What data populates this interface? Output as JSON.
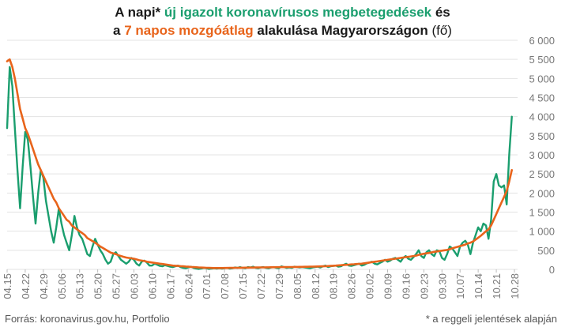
{
  "title": {
    "line1_a": "A napi* ",
    "line1_b": "új igazolt koronavírusos megbetegedések",
    "line1_c": " és",
    "line2_a": "a ",
    "line2_b": "7 napos mozgóátlag",
    "line2_c": " alakulása Magyarországon",
    "line2_d": " (fő)"
  },
  "source": "Forrás: koronavirus.gov.hu, Portfolio",
  "note": "* a reggeli jelentések alapján",
  "colors": {
    "daily": "#1a9e6e",
    "average": "#e8641b",
    "grid": "#e3e3e3",
    "axis_text": "#777777"
  },
  "chart_data": {
    "type": "line",
    "ylim": [
      0,
      6000
    ],
    "yticks": [
      "0",
      "500",
      "1 000",
      "1 500",
      "2 000",
      "2 500",
      "3 000",
      "3 500",
      "4 000",
      "4 500",
      "5 000",
      "5 500",
      "6 000"
    ],
    "ytick_values": [
      0,
      500,
      1000,
      1500,
      2000,
      2500,
      3000,
      3500,
      4000,
      4500,
      5000,
      5500,
      6000
    ],
    "xlim": [
      0,
      196
    ],
    "xticks": [
      "04.15",
      "04.22",
      "04.29",
      "05.06",
      "05.13",
      "05.20",
      "05.27",
      "06.03",
      "06.10",
      "06.17",
      "06.24",
      "07.01",
      "07.08",
      "07.15",
      "07.22",
      "07.29",
      "08.05",
      "08.12",
      "08.19",
      "08.26",
      "09.02",
      "09.09",
      "09.16",
      "09.23",
      "09.30",
      "10.07",
      "10.14",
      "10.21",
      "10.28"
    ],
    "grid": true,
    "series": [
      {
        "values": [
          3700,
          5300,
          4800,
          3700,
          2600,
          1600,
          2700,
          3600,
          3400,
          2700,
          1900,
          1200,
          2000,
          2600,
          2400,
          1800,
          1400,
          1000,
          700,
          1100,
          1600,
          1200,
          900,
          700,
          500,
          900,
          1400,
          1100,
          900,
          800,
          600,
          400,
          350,
          600,
          800,
          650,
          500,
          400,
          250,
          150,
          200,
          400,
          450,
          350,
          250,
          200,
          150,
          200,
          300,
          250,
          150,
          100,
          200,
          230,
          180,
          100,
          100,
          150,
          120,
          90,
          80,
          110,
          90,
          70,
          60,
          80,
          100,
          60,
          40,
          30,
          50,
          70,
          40,
          20,
          10,
          20,
          40,
          30,
          10,
          20,
          30,
          20,
          30,
          20,
          30,
          40,
          20,
          30,
          50,
          40,
          60,
          40,
          30,
          60,
          50,
          70,
          40,
          30,
          50,
          60,
          40,
          30,
          50,
          60,
          40,
          30,
          80,
          60,
          40,
          50,
          40,
          70,
          60,
          50,
          60,
          50,
          40,
          30,
          50,
          60,
          70,
          50,
          80,
          100,
          60,
          80,
          90,
          100,
          70,
          80,
          120,
          150,
          100,
          90,
          110,
          130,
          150,
          100,
          120,
          160,
          180,
          200,
          150,
          130,
          170,
          200,
          250,
          200,
          230,
          280,
          300,
          250,
          200,
          300,
          350,
          280,
          250,
          320,
          400,
          500,
          350,
          300,
          450,
          500,
          400,
          350,
          500,
          480,
          300,
          250,
          400,
          600,
          550,
          450,
          350,
          600,
          700,
          750,
          650,
          400,
          700,
          900,
          1100,
          1000,
          1200,
          1150,
          800,
          1300,
          2300,
          2500,
          2200,
          2150,
          2200,
          1700,
          3000,
          4000
        ]
      },
      {
        "values": [
          5450,
          5500,
          5300,
          5000,
          4600,
          4200,
          3950,
          3700,
          3550,
          3350,
          3150,
          2950,
          2750,
          2600,
          2450,
          2300,
          2150,
          2000,
          1850,
          1750,
          1600,
          1500,
          1400,
          1300,
          1250,
          1150,
          1100,
          1050,
          1000,
          950,
          900,
          820,
          780,
          740,
          700,
          650,
          600,
          560,
          520,
          480,
          440,
          420,
          400,
          370,
          350,
          330,
          310,
          300,
          290,
          280,
          260,
          240,
          230,
          220,
          200,
          190,
          180,
          170,
          160,
          150,
          140,
          130,
          120,
          110,
          100,
          95,
          90,
          85,
          80,
          75,
          70,
          65,
          60,
          55,
          50,
          48,
          45,
          42,
          40,
          38,
          36,
          35,
          35,
          36,
          37,
          38,
          39,
          40,
          41,
          42,
          43,
          44,
          45,
          46,
          47,
          48,
          49,
          50,
          51,
          52,
          53,
          54,
          55,
          56,
          57,
          58,
          59,
          60,
          61,
          62,
          63,
          64,
          65,
          66,
          67,
          68,
          69,
          70,
          72,
          74,
          76,
          78,
          80,
          83,
          86,
          90,
          95,
          100,
          105,
          110,
          115,
          120,
          125,
          130,
          135,
          140,
          145,
          150,
          160,
          170,
          180,
          190,
          200,
          210,
          220,
          230,
          240,
          250,
          260,
          270,
          280,
          290,
          300,
          310,
          320,
          330,
          340,
          350,
          360,
          380,
          395,
          410,
          420,
          430,
          445,
          460,
          470,
          480,
          490,
          500,
          510,
          530,
          550,
          570,
          590,
          610,
          630,
          650,
          680,
          700,
          730,
          780,
          830,
          880,
          940,
          1000,
          1050,
          1150,
          1300,
          1450,
          1600,
          1750,
          1900,
          2050,
          2300,
          2600
        ]
      }
    ]
  }
}
